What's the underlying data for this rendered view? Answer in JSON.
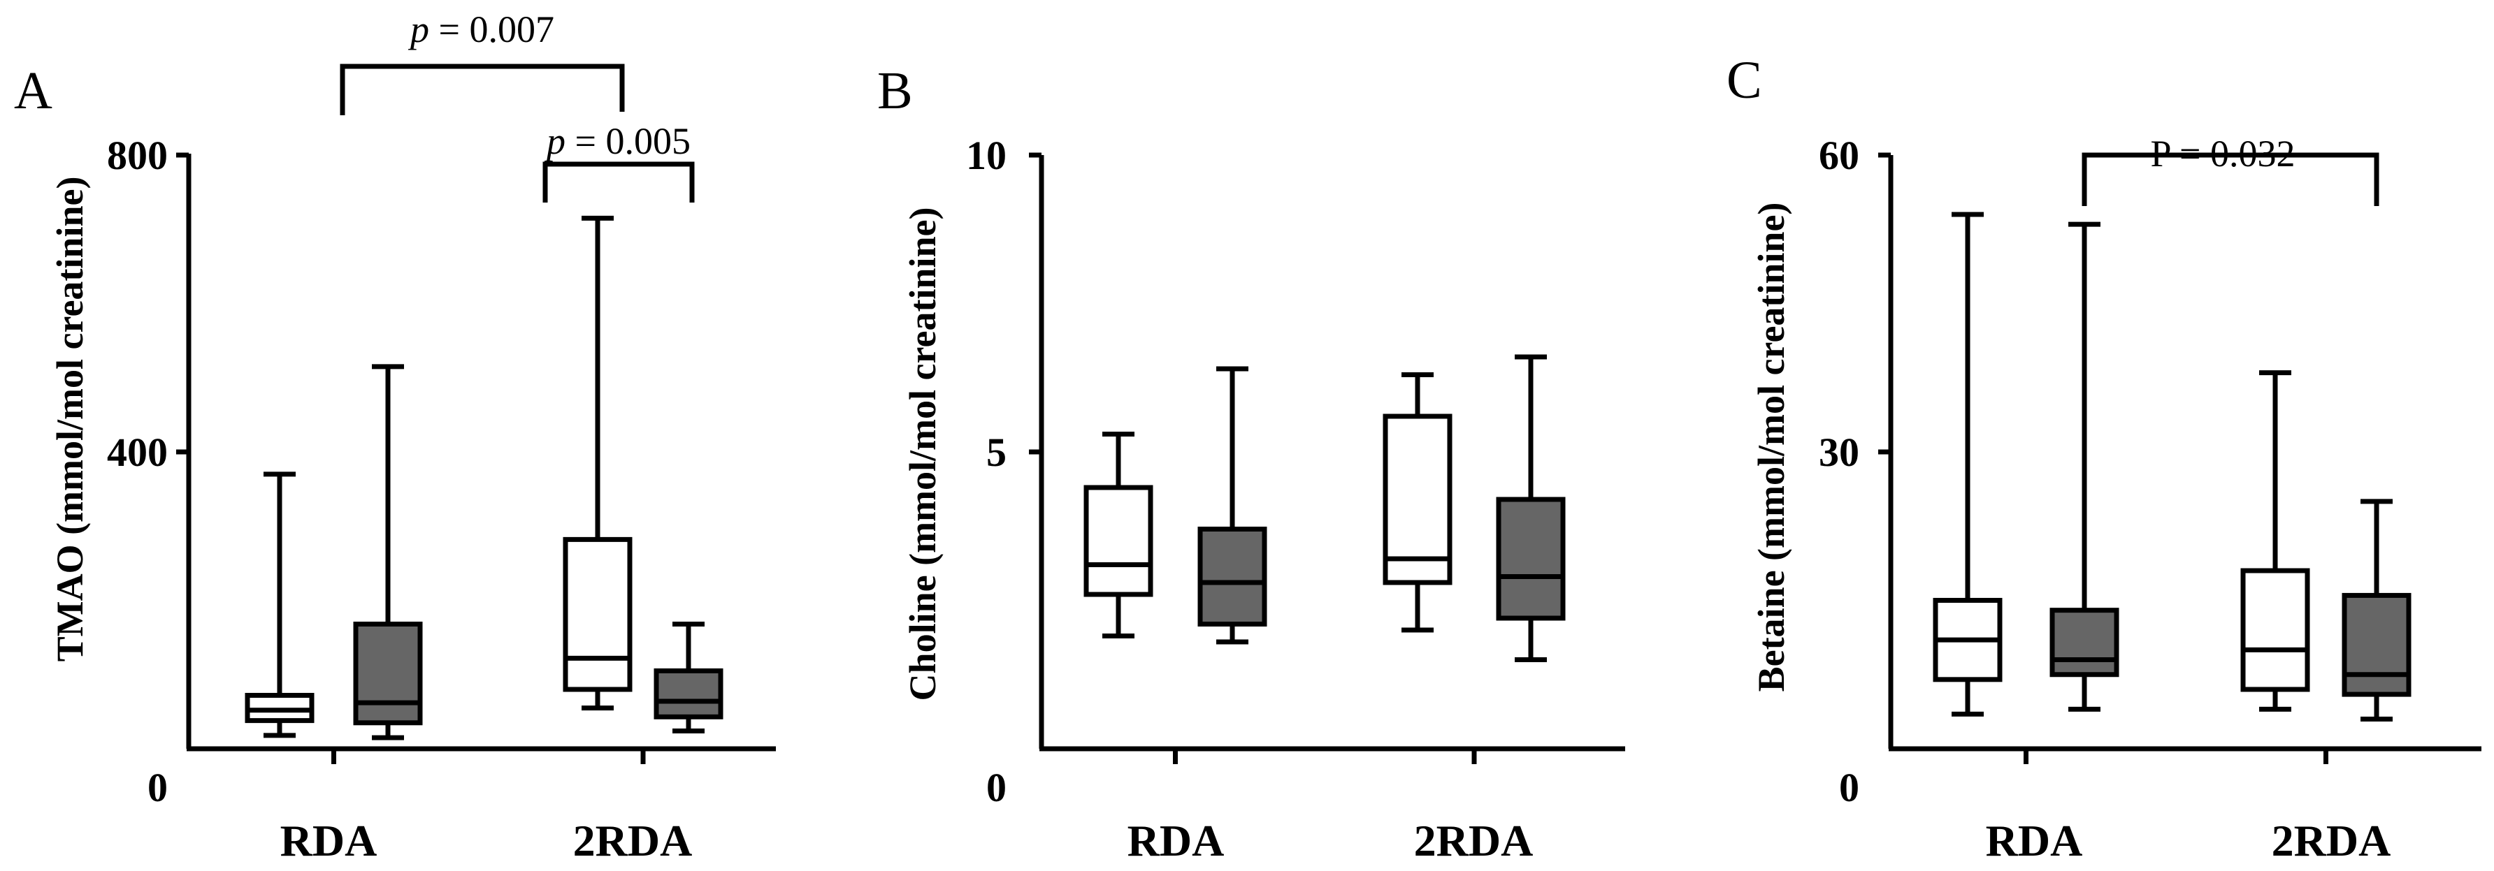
{
  "chart_data": [
    {
      "type": "box",
      "panel": "A",
      "ylabel": "TMAO (mmol/mol creatinine)",
      "ylim": [
        0,
        800
      ],
      "yticks": [
        0,
        400,
        800
      ],
      "categories": [
        "RDA",
        "2RDA"
      ],
      "series": [
        {
          "color": "#ffffff",
          "boxes": [
            {
              "min": 18,
              "q1": 38,
              "median": 52,
              "q3": 72,
              "max": 370
            },
            {
              "min": 55,
              "q1": 80,
              "median": 122,
              "q3": 282,
              "max": 715
            }
          ]
        },
        {
          "color": "#666666",
          "boxes": [
            {
              "min": 15,
              "q1": 35,
              "median": 62,
              "q3": 168,
              "max": 515
            },
            {
              "min": 24,
              "q1": 43,
              "median": 64,
              "q3": 105,
              "max": 168
            }
          ]
        }
      ],
      "annotations": [
        {
          "italic": "p",
          "text": " = 0.007"
        },
        {
          "italic": "p",
          "text": " = 0.005"
        }
      ]
    },
    {
      "type": "box",
      "panel": "B",
      "ylabel": "Choline (mmol/mol creatinine)",
      "ylim": [
        0,
        10
      ],
      "yticks": [
        0,
        5,
        10
      ],
      "categories": [
        "RDA",
        "2RDA"
      ],
      "series": [
        {
          "color": "#ffffff",
          "boxes": [
            {
              "min": 1.9,
              "q1": 2.6,
              "median": 3.1,
              "q3": 4.4,
              "max": 5.3
            },
            {
              "min": 2.0,
              "q1": 2.8,
              "median": 3.2,
              "q3": 5.6,
              "max": 6.3
            }
          ]
        },
        {
          "color": "#666666",
          "boxes": [
            {
              "min": 1.8,
              "q1": 2.1,
              "median": 2.8,
              "q3": 3.7,
              "max": 6.4
            },
            {
              "min": 1.5,
              "q1": 2.2,
              "median": 2.9,
              "q3": 4.2,
              "max": 6.6
            }
          ]
        }
      ],
      "annotations": []
    },
    {
      "type": "box",
      "panel": "C",
      "ylabel": "Betaine (mmol/mol creatinine)",
      "ylim": [
        0,
        60
      ],
      "yticks": [
        0,
        30,
        60
      ],
      "categories": [
        "RDA",
        "2RDA"
      ],
      "series": [
        {
          "color": "#ffffff",
          "boxes": [
            {
              "min": 3.5,
              "q1": 7,
              "median": 11,
              "q3": 15,
              "max": 54
            },
            {
              "min": 4,
              "q1": 6,
              "median": 10,
              "q3": 18,
              "max": 38
            }
          ]
        },
        {
          "color": "#666666",
          "boxes": [
            {
              "min": 4,
              "q1": 7.5,
              "median": 9,
              "q3": 14,
              "max": 53
            },
            {
              "min": 3,
              "q1": 5.5,
              "median": 7.5,
              "q3": 15.5,
              "max": 25
            }
          ]
        }
      ],
      "annotations": [
        {
          "italic": "",
          "text": "P = 0.032"
        }
      ]
    }
  ]
}
